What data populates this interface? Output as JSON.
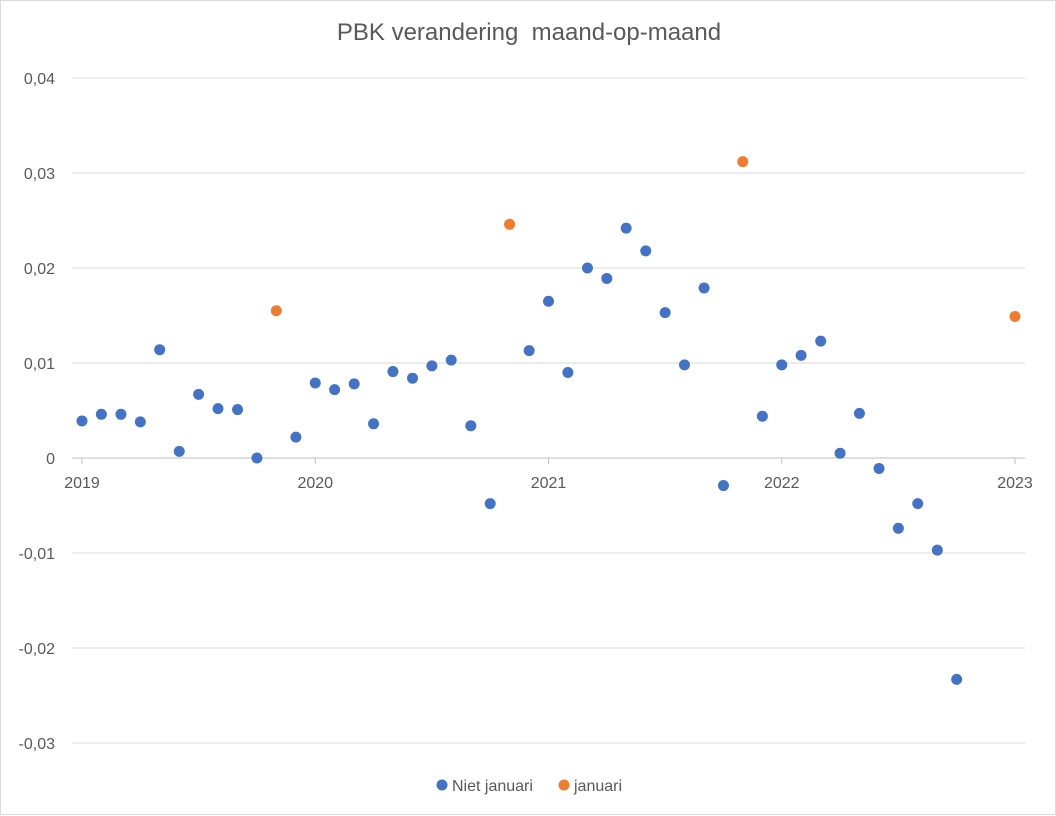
{
  "chart_data": {
    "type": "scatter",
    "title": "PBK verandering  maand-op-maand",
    "xlabel": "",
    "ylabel": "",
    "xlim": [
      2019,
      2023
    ],
    "ylim": [
      -0.03,
      0.04
    ],
    "y_ticks": [
      {
        "value": 0.04,
        "label": "0,04"
      },
      {
        "value": 0.03,
        "label": "0,03"
      },
      {
        "value": 0.02,
        "label": "0,02"
      },
      {
        "value": 0.01,
        "label": "0,01"
      },
      {
        "value": 0,
        "label": "0"
      },
      {
        "value": -0.01,
        "label": "-0,01"
      },
      {
        "value": -0.02,
        "label": "-0,02"
      },
      {
        "value": -0.03,
        "label": "-0,03"
      }
    ],
    "x_ticks": [
      {
        "value": 2019,
        "label": "2019"
      },
      {
        "value": 2020,
        "label": "2020"
      },
      {
        "value": 2021,
        "label": "2021"
      },
      {
        "value": 2022,
        "label": "2022"
      },
      {
        "value": 2023,
        "label": "2023"
      }
    ],
    "grid": true,
    "legend": "bottom",
    "series": [
      {
        "name": "Niet januari",
        "color": "#4472C4",
        "points": [
          [
            2019.0,
            0.0039
          ],
          [
            2019.083,
            0.0046
          ],
          [
            2019.167,
            0.0046
          ],
          [
            2019.25,
            0.0038
          ],
          [
            2019.333,
            0.0114
          ],
          [
            2019.417,
            0.0007
          ],
          [
            2019.5,
            0.0067
          ],
          [
            2019.583,
            0.0052
          ],
          [
            2019.667,
            0.0051
          ],
          [
            2019.75,
            0.0
          ],
          [
            2019.917,
            0.0022
          ],
          [
            2020.0,
            0.0079
          ],
          [
            2020.083,
            0.0072
          ],
          [
            2020.167,
            0.0078
          ],
          [
            2020.25,
            0.0036
          ],
          [
            2020.333,
            0.0091
          ],
          [
            2020.417,
            0.0084
          ],
          [
            2020.5,
            0.0097
          ],
          [
            2020.583,
            0.0103
          ],
          [
            2020.667,
            0.0034
          ],
          [
            2020.75,
            -0.0048
          ],
          [
            2020.917,
            0.0113
          ],
          [
            2021.0,
            0.0165
          ],
          [
            2021.083,
            0.009
          ],
          [
            2021.167,
            0.02
          ],
          [
            2021.25,
            0.0189
          ],
          [
            2021.333,
            0.0242
          ],
          [
            2021.417,
            0.0218
          ],
          [
            2021.5,
            0.0153
          ],
          [
            2021.583,
            0.0098
          ],
          [
            2021.667,
            0.0179
          ],
          [
            2021.75,
            -0.0029
          ],
          [
            2021.917,
            0.0044
          ],
          [
            2022.0,
            0.0098
          ],
          [
            2022.083,
            0.0108
          ],
          [
            2022.167,
            0.0123
          ],
          [
            2022.25,
            0.0005
          ],
          [
            2022.333,
            0.0047
          ],
          [
            2022.417,
            -0.0011
          ],
          [
            2022.5,
            -0.0074
          ],
          [
            2022.583,
            -0.0048
          ],
          [
            2022.667,
            -0.0097
          ],
          [
            2022.75,
            -0.0233
          ]
        ]
      },
      {
        "name": "januari",
        "color": "#ED7D31",
        "points": [
          [
            2019.833,
            0.0155
          ],
          [
            2020.833,
            0.0246
          ],
          [
            2021.833,
            0.0312
          ],
          [
            2023.0,
            0.0149
          ]
        ]
      }
    ]
  }
}
